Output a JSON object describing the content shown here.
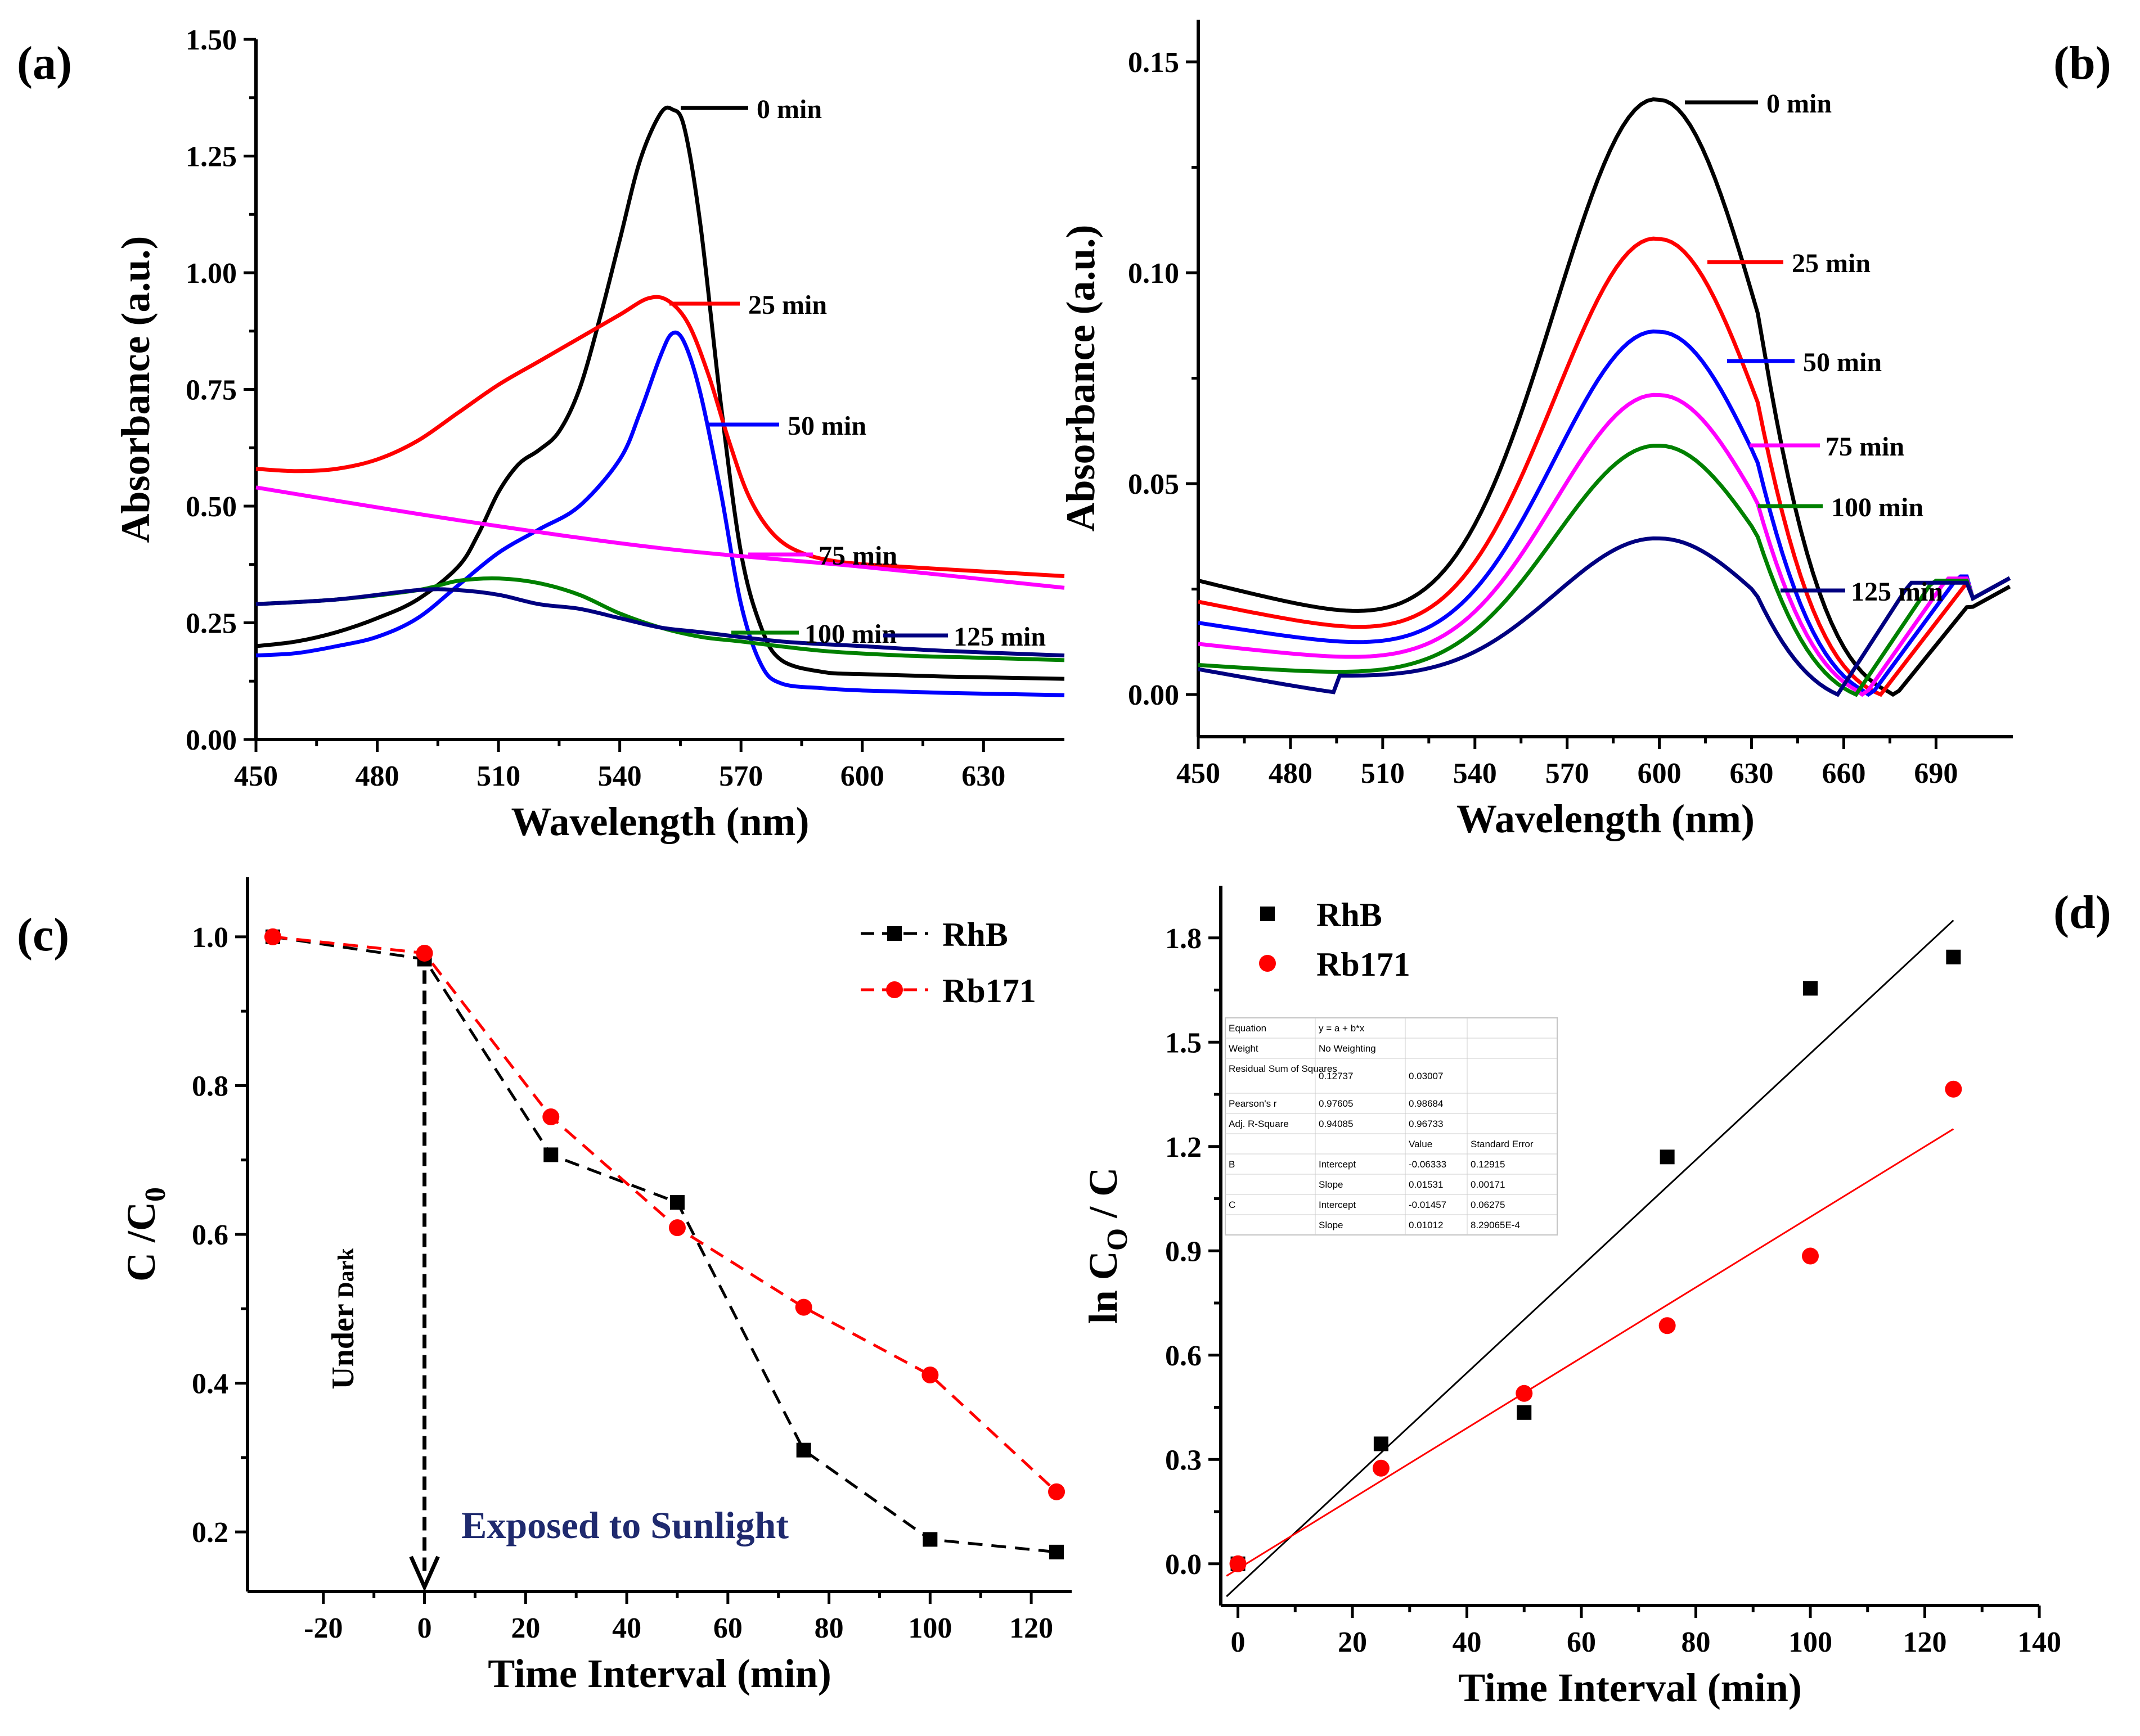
{
  "figure": {
    "panel_labels": [
      "(a)",
      "(b)",
      "(c)",
      "(d)"
    ]
  },
  "chart_data": [
    {
      "panel": "(a)",
      "type": "line",
      "xlabel": "Wavelength (nm)",
      "ylabel": "Absorbance (a.u.)",
      "xlim": [
        450,
        650
      ],
      "ylim": [
        0,
        1.5
      ],
      "xticks": [
        450,
        480,
        510,
        540,
        570,
        600,
        630
      ],
      "yticks": [
        0.0,
        0.25,
        0.5,
        0.75,
        1.0,
        1.25,
        1.5
      ],
      "ytick_labels": [
        "0.00",
        "0.25",
        "0.50",
        "0.75",
        "1.00",
        "1.25",
        "1.50"
      ],
      "series": [
        {
          "name": "0 min",
          "color": "#000000",
          "x": [
            450,
            460,
            470,
            480,
            490,
            500,
            505,
            510,
            515,
            520,
            525,
            530,
            535,
            540,
            545,
            550,
            553,
            556,
            560,
            565,
            570,
            575,
            580,
            590,
            600,
            620,
            650
          ],
          "y": [
            0.2,
            0.21,
            0.23,
            0.26,
            0.3,
            0.37,
            0.44,
            0.53,
            0.59,
            0.62,
            0.66,
            0.75,
            0.9,
            1.07,
            1.24,
            1.34,
            1.35,
            1.31,
            1.1,
            0.72,
            0.4,
            0.24,
            0.17,
            0.145,
            0.14,
            0.135,
            0.13
          ]
        },
        {
          "name": "25 min",
          "color": "#ff0000",
          "x": [
            450,
            460,
            470,
            480,
            490,
            500,
            510,
            520,
            530,
            540,
            547,
            552,
            557,
            562,
            567,
            572,
            578,
            585,
            595,
            610,
            630,
            650
          ],
          "y": [
            0.58,
            0.575,
            0.58,
            0.6,
            0.64,
            0.7,
            0.76,
            0.81,
            0.86,
            0.91,
            0.945,
            0.94,
            0.89,
            0.78,
            0.64,
            0.52,
            0.44,
            0.4,
            0.38,
            0.37,
            0.36,
            0.35
          ]
        },
        {
          "name": "50 min",
          "color": "#0000ff",
          "x": [
            450,
            460,
            470,
            480,
            490,
            500,
            510,
            520,
            530,
            540,
            545,
            550,
            553,
            556,
            560,
            565,
            570,
            575,
            580,
            590,
            600,
            620,
            650
          ],
          "y": [
            0.18,
            0.185,
            0.2,
            0.22,
            0.26,
            0.33,
            0.4,
            0.45,
            0.5,
            0.6,
            0.7,
            0.82,
            0.87,
            0.85,
            0.74,
            0.53,
            0.29,
            0.16,
            0.12,
            0.11,
            0.105,
            0.1,
            0.095
          ]
        },
        {
          "name": "75 min",
          "color": "#ff00ff",
          "x": [
            450,
            500,
            550,
            600,
            650
          ],
          "y": [
            0.54,
            0.47,
            0.41,
            0.37,
            0.325
          ]
        },
        {
          "name": "100 min",
          "color": "#008000",
          "x": [
            450,
            470,
            490,
            500,
            510,
            520,
            530,
            540,
            550,
            560,
            570,
            590,
            610,
            630,
            650
          ],
          "y": [
            0.29,
            0.3,
            0.32,
            0.34,
            0.345,
            0.335,
            0.31,
            0.27,
            0.24,
            0.22,
            0.21,
            0.19,
            0.18,
            0.175,
            0.17
          ]
        },
        {
          "name": "125 min",
          "color": "#000080",
          "x": [
            450,
            470,
            490,
            500,
            510,
            520,
            530,
            540,
            550,
            560,
            580,
            600,
            620,
            650
          ],
          "y": [
            0.29,
            0.3,
            0.32,
            0.32,
            0.31,
            0.29,
            0.28,
            0.26,
            0.24,
            0.23,
            0.21,
            0.2,
            0.19,
            0.18
          ]
        }
      ]
    },
    {
      "panel": "(b)",
      "type": "line",
      "xlabel": "Wavelength (nm)",
      "ylabel": "Absorbance (a.u.)",
      "xlim": [
        450,
        715
      ],
      "ylim": [
        -0.01,
        0.16
      ],
      "xticks": [
        450,
        480,
        510,
        540,
        570,
        600,
        630,
        660,
        690
      ],
      "yticks": [
        0.0,
        0.05,
        0.1,
        0.15
      ],
      "ytick_labels": [
        "0.00",
        "0.05",
        "0.10",
        "0.15"
      ],
      "series": [
        {
          "name": "0 min",
          "color": "#000000",
          "peak": 0.141,
          "valley_x": 677
        },
        {
          "name": "25 min",
          "color": "#ff0000",
          "peak": 0.108,
          "valley_x": 672
        },
        {
          "name": "50 min",
          "color": "#0000ff",
          "peak": 0.086,
          "valley_x": 669
        },
        {
          "name": "75 min",
          "color": "#ff00ff",
          "peak": 0.071,
          "valley_x": 667
        },
        {
          "name": "100 min",
          "color": "#008000",
          "peak": 0.059,
          "valley_x": 664
        },
        {
          "name": "125 min",
          "color": "#000080",
          "peak": 0.037,
          "valley_x": 658
        }
      ]
    },
    {
      "panel": "(c)",
      "type": "line",
      "xlabel": "Time Interval (min)",
      "ylabel": "C /C",
      "ylabel_sub": "0",
      "xlim": [
        -35,
        128
      ],
      "ylim": [
        0.12,
        1.08
      ],
      "xticks": [
        -20,
        0,
        20,
        40,
        60,
        80,
        100,
        120
      ],
      "yticks": [
        0.2,
        0.4,
        0.6,
        0.8,
        1.0
      ],
      "ytick_labels": [
        "0.2",
        "0.4",
        "0.6",
        "0.8",
        "1.0"
      ],
      "series": [
        {
          "name": "RhB",
          "color": "#000000",
          "marker": "square",
          "x": [
            -30,
            0,
            25,
            50,
            75,
            100,
            125
          ],
          "y": [
            1.0,
            0.97,
            0.707,
            0.643,
            0.31,
            0.19,
            0.173
          ]
        },
        {
          "name": "Rb171",
          "color": "#ff0000",
          "marker": "circle",
          "x": [
            -30,
            0,
            25,
            50,
            75,
            100,
            125
          ],
          "y": [
            1.0,
            0.978,
            0.758,
            0.609,
            0.502,
            0.411,
            0.254
          ]
        }
      ],
      "annotations": {
        "dark": "Under",
        "dark_sub": "Dark",
        "light": "Exposed to Sunlight"
      }
    },
    {
      "panel": "(d)",
      "type": "scatter",
      "xlabel": "Time Interval (min)",
      "ylabel": "ln C",
      "ylabel_sub": "O",
      "ylabel_tail": " / C",
      "xlim": [
        -3,
        140
      ],
      "ylim": [
        -0.12,
        1.95
      ],
      "xticks": [
        0,
        20,
        40,
        60,
        80,
        100,
        120,
        140
      ],
      "yticks": [
        0.0,
        0.3,
        0.6,
        0.9,
        1.2,
        1.5,
        1.8
      ],
      "ytick_labels": [
        "0.0",
        "0.3",
        "0.6",
        "0.9",
        "1.2",
        "1.5",
        "1.8"
      ],
      "series": [
        {
          "name": "RhB",
          "color": "#000000",
          "marker": "square",
          "x": [
            0,
            25,
            50,
            75,
            100,
            125
          ],
          "y": [
            0,
            0.345,
            0.435,
            1.17,
            1.655,
            1.745
          ],
          "fit": {
            "intercept": -0.06333,
            "slope": 0.01531
          }
        },
        {
          "name": "Rb171",
          "color": "#ff0000",
          "marker": "circle",
          "x": [
            0,
            25,
            50,
            75,
            100,
            125
          ],
          "y": [
            0,
            0.275,
            0.49,
            0.685,
            0.885,
            1.365
          ],
          "fit": {
            "intercept": -0.01457,
            "slope": 0.01012
          }
        }
      ],
      "fit_table": [
        [
          "Equation",
          "y = a + b*x",
          "",
          ""
        ],
        [
          "Weight",
          "No Weighting",
          "",
          ""
        ],
        [
          "Residual Sum of Squares",
          "0.12737",
          "0.03007",
          ""
        ],
        [
          "Pearson's r",
          "0.97605",
          "0.98684",
          ""
        ],
        [
          "Adj. R-Square",
          "0.94085",
          "0.96733",
          ""
        ],
        [
          "",
          "",
          "Value",
          "Standard Error"
        ],
        [
          "B",
          "Intercept",
          "-0.06333",
          "0.12915"
        ],
        [
          "",
          "Slope",
          "0.01531",
          "0.00171"
        ],
        [
          "C",
          "Intercept",
          "-0.01457",
          "0.06275"
        ],
        [
          "",
          "Slope",
          "0.01012",
          "8.29065E-4"
        ]
      ]
    }
  ]
}
